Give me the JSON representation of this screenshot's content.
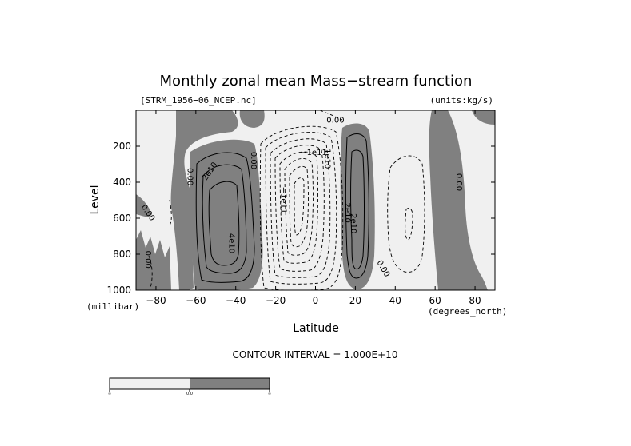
{
  "colors": {
    "positive": "#808080",
    "negative": "#f0f0f0",
    "frame": "#000000"
  },
  "chart_data": {
    "type": "contour",
    "title": "Monthly zonal mean Mass−stream function",
    "file_label": "[STRM_1956−06_NCEP.nc]",
    "units_label": "(units:kg/s)",
    "xlabel": "Latitude",
    "xunit": "(degrees_north)",
    "ylabel": "Level",
    "yunit": "(millibar)",
    "xlim": [
      -90,
      90
    ],
    "ylim": [
      1000,
      0
    ],
    "x_ticks": [
      -80,
      -60,
      -40,
      -20,
      0,
      20,
      40,
      60,
      80
    ],
    "y_ticks": [
      200,
      400,
      600,
      800,
      1000
    ],
    "contour_interval_text": "CONTOUR INTERVAL = 1.000E+10",
    "contour_interval": 10000000000.0,
    "shading": [
      {
        "label": "∞",
        "range": "negative"
      },
      {
        "label": "0.0",
        "range": "zero"
      },
      {
        "label": "∞",
        "range": "positive"
      }
    ],
    "contour_labels": [
      {
        "text": "0.00",
        "lat": 10,
        "level": 55,
        "angle": 0
      },
      {
        "text": "0.00",
        "lat": -63,
        "level": 370,
        "angle": 90
      },
      {
        "text": "0.00",
        "lat": -84,
        "level": 570,
        "angle": 55
      },
      {
        "text": "0.00",
        "lat": -84,
        "level": 830,
        "angle": 90
      },
      {
        "text": "2e10",
        "lat": -53,
        "level": 340,
        "angle": -55
      },
      {
        "text": "4e10",
        "lat": -42,
        "level": 740,
        "angle": 90
      },
      {
        "text": "0.00",
        "lat": -31,
        "level": 280,
        "angle": 90
      },
      {
        "text": "−1e11",
        "lat": -16,
        "level": 500,
        "angle": 90
      },
      {
        "text": "−1e11",
        "lat": -1,
        "level": 235,
        "angle": 0
      },
      {
        "text": "1e10",
        "lat": 6,
        "level": 270,
        "angle": 90
      },
      {
        "text": "2e10",
        "lat": 16,
        "level": 570,
        "angle": 90
      },
      {
        "text": "2e10",
        "lat": 19,
        "level": 630,
        "angle": 90
      },
      {
        "text": "0.00",
        "lat": 34,
        "level": 880,
        "angle": 60
      },
      {
        "text": "0.00",
        "lat": 72,
        "level": 400,
        "angle": 90
      }
    ]
  }
}
